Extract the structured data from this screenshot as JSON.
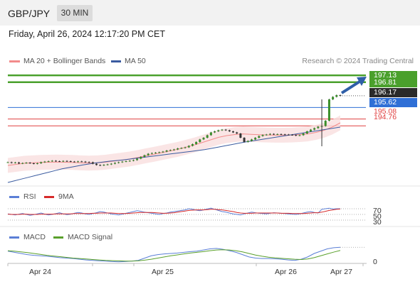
{
  "header": {
    "symbol": "GBP/JPY",
    "timeframe": "30 MIN"
  },
  "datetime": "Friday, April 26, 2024 12:17:20 PM CET",
  "price_panel": {
    "legend": [
      {
        "label": "MA 20 + Bollinger Bands",
        "color": "#f28b8b"
      },
      {
        "label": "MA 50",
        "color": "#3a5ba0"
      }
    ],
    "credit": "Research © 2024 Trading Central",
    "price_labels": [
      {
        "text": "197.13",
        "bg": "#4aa02c",
        "fg": "#ffffff"
      },
      {
        "text": "196.81",
        "bg": "#4aa02c",
        "fg": "#ffffff"
      },
      {
        "text": "196.17",
        "bg": "#2a2a2a",
        "fg": "#ffffff"
      },
      {
        "text": "195.62",
        "bg": "#2f6fd6",
        "fg": "#ffffff"
      },
      {
        "text": "195.08",
        "bg": "",
        "fg": "#e04040"
      },
      {
        "text": "194.76",
        "bg": "",
        "fg": "#e04040"
      }
    ]
  },
  "rsi_panel": {
    "legend": [
      {
        "label": "RSI",
        "color": "#5b7fd6"
      },
      {
        "label": "9MA",
        "color": "#d62a2a"
      }
    ],
    "levels": [
      "70",
      "50",
      "30"
    ]
  },
  "macd_panel": {
    "legend": [
      {
        "label": "MACD",
        "color": "#5b7fd6"
      },
      {
        "label": "MACD Signal",
        "color": "#5aa02c"
      }
    ],
    "zero_label": "0"
  },
  "x_axis": {
    "labels": [
      "Apr 24",
      "Apr 25",
      "Apr 26",
      "Apr 27"
    ]
  },
  "chart_data": {
    "type": "line",
    "symbol": "GBP/JPY",
    "timeframe": "30 MIN",
    "y_range": [
      193.0,
      197.4
    ],
    "x_labels": [
      "Apr 24",
      "Apr 25",
      "Apr 26",
      "Apr 27"
    ],
    "close": [
      193.05,
      193.02,
      193.04,
      192.99,
      193.01,
      193.03,
      193.0,
      192.98,
      193.0,
      193.05,
      193.08,
      193.1,
      193.12,
      193.1,
      193.09,
      193.11,
      193.1,
      193.08,
      193.07,
      193.09,
      193.08,
      193.06,
      193.05,
      192.98,
      192.92,
      192.9,
      192.93,
      192.95,
      192.98,
      193.02,
      193.05,
      193.08,
      193.1,
      193.12,
      193.15,
      193.22,
      193.3,
      193.38,
      193.45,
      193.48,
      193.5,
      193.52,
      193.55,
      193.6,
      193.62,
      193.65,
      193.7,
      193.72,
      193.75,
      193.82,
      193.9,
      194.0,
      194.12,
      194.2,
      194.32,
      194.45,
      194.5,
      194.55,
      194.58,
      194.55,
      194.5,
      194.45,
      194.4,
      194.2,
      194.0,
      194.05,
      194.12,
      194.2,
      194.28,
      194.33,
      194.35,
      194.38,
      194.36,
      194.37,
      194.36,
      194.35,
      194.34,
      194.33,
      194.3,
      194.32,
      194.4,
      194.5,
      194.58,
      194.65,
      194.72,
      194.75,
      195.0,
      196.0,
      196.12,
      196.2,
      196.17
    ],
    "ma50": [
      192.1,
      192.18,
      192.26,
      192.34,
      192.42,
      192.5,
      192.58,
      192.66,
      192.74,
      192.8,
      192.86,
      192.92,
      192.97,
      193.02,
      193.06,
      193.1,
      193.13,
      193.16,
      193.2,
      193.24,
      193.28,
      193.32,
      193.36,
      193.4,
      193.44,
      193.48,
      193.52,
      193.56,
      193.6,
      193.64,
      193.7,
      193.76,
      193.82,
      193.88,
      193.94,
      194.0,
      194.05,
      194.1,
      194.15,
      194.2,
      194.25,
      194.3,
      194.35,
      194.4,
      194.45,
      194.5,
      194.55,
      194.6,
      194.65,
      194.7
    ],
    "ma20": [
      192.9,
      192.95,
      193.0,
      193.02,
      193.04,
      193.05,
      193.06,
      193.05,
      193.04,
      193.02,
      193.01,
      193.02,
      193.05,
      193.1,
      193.15,
      193.2,
      193.27,
      193.35,
      193.42,
      193.5,
      193.58,
      193.66,
      193.76,
      193.86,
      193.98,
      194.1,
      194.22,
      194.3,
      194.35,
      194.38,
      194.36,
      194.34,
      194.33,
      194.32,
      194.32,
      194.33,
      194.35,
      194.38,
      194.45,
      194.55,
      194.7,
      194.9
    ],
    "rsi": [
      52,
      50,
      48,
      51,
      53,
      50,
      47,
      49,
      52,
      55,
      51,
      48,
      50,
      53,
      56,
      52,
      49,
      51,
      54,
      57,
      55,
      52,
      50,
      53,
      56,
      60,
      58,
      55,
      52,
      50,
      48,
      51,
      54,
      57,
      60,
      63,
      61,
      58,
      56,
      54,
      52,
      50,
      53,
      55,
      58,
      60,
      62,
      64,
      66,
      70,
      68,
      65,
      63,
      66,
      69,
      72,
      68,
      64,
      60,
      58,
      55,
      52,
      50,
      48,
      52,
      55,
      58,
      56,
      54,
      53,
      52,
      54,
      56,
      55,
      54,
      53,
      52,
      51,
      50,
      52,
      55,
      58,
      60,
      57,
      55,
      68,
      70,
      72,
      69,
      70,
      70
    ],
    "rsi_9ma": [
      51,
      50,
      50,
      50,
      51,
      51,
      50,
      50,
      50,
      51,
      51,
      51,
      51,
      52,
      52,
      52,
      52,
      52,
      53,
      53,
      53,
      53,
      53,
      54,
      54,
      55,
      55,
      55,
      55,
      54,
      53,
      53,
      53,
      54,
      55,
      56,
      57,
      57,
      57,
      57,
      56,
      55,
      54,
      54,
      55,
      56,
      58,
      60,
      62,
      64,
      65,
      66,
      66,
      66,
      67,
      68,
      68,
      67,
      66,
      64,
      62,
      60,
      57,
      55,
      54,
      54,
      54,
      55,
      55,
      55,
      55,
      55,
      55,
      55,
      54,
      54,
      54,
      53,
      53,
      53,
      53,
      54,
      55,
      56,
      56,
      58,
      61,
      64,
      66,
      68,
      69
    ],
    "macd": [
      0.1,
      0.05,
      0.0,
      -0.05,
      -0.08,
      -0.1,
      -0.12,
      -0.15,
      -0.18,
      -0.2,
      -0.22,
      -0.25,
      -0.28,
      -0.3,
      -0.32,
      -0.33,
      -0.35,
      -0.36,
      -0.35,
      -0.33,
      -0.3,
      -0.2,
      -0.1,
      -0.05,
      -0.02,
      0.0,
      0.02,
      0.05,
      0.08,
      0.1,
      0.15,
      0.2,
      0.22,
      0.18,
      0.12,
      0.05,
      -0.05,
      -0.15,
      -0.2,
      -0.22,
      -0.22,
      -0.23,
      -0.25,
      -0.28,
      -0.3,
      -0.25,
      -0.15,
      0.0,
      0.1,
      0.2,
      0.25,
      0.27
    ],
    "macd_signal": [
      0.12,
      0.1,
      0.07,
      0.04,
      0.0,
      -0.04,
      -0.08,
      -0.11,
      -0.14,
      -0.17,
      -0.2,
      -0.22,
      -0.24,
      -0.26,
      -0.28,
      -0.3,
      -0.31,
      -0.32,
      -0.33,
      -0.33,
      -0.32,
      -0.29,
      -0.25,
      -0.2,
      -0.15,
      -0.1,
      -0.06,
      -0.02,
      0.02,
      0.05,
      0.08,
      0.12,
      0.15,
      0.16,
      0.15,
      0.12,
      0.07,
      0.0,
      -0.07,
      -0.12,
      -0.16,
      -0.19,
      -0.21,
      -0.23,
      -0.25,
      -0.26,
      -0.24,
      -0.18,
      -0.1,
      -0.02,
      0.06,
      0.13
    ],
    "levels": [
      {
        "value": 197.13,
        "label": "197.13",
        "color": "#4aa02c"
      },
      {
        "value": 196.81,
        "label": "196.81",
        "color": "#4aa02c"
      },
      {
        "value": 195.62,
        "label": "195.62",
        "color": "#2f6fd6"
      },
      {
        "value": 195.08,
        "label": "195.08",
        "color": "#e04040"
      },
      {
        "value": 194.76,
        "label": "194.76",
        "color": "#e04040"
      }
    ],
    "last_price": 196.17,
    "rsi_levels": [
      70,
      50,
      30
    ],
    "grid": false
  }
}
